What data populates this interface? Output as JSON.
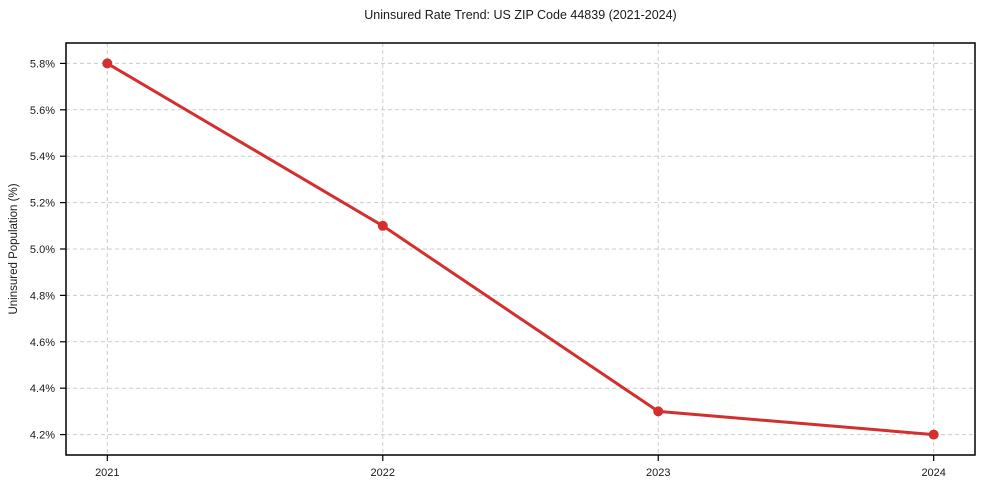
{
  "chart_data": {
    "type": "line",
    "title": "Uninsured Rate Trend: US ZIP Code 44839 (2021-2024)",
    "xlabel": "",
    "ylabel": "Uninsured Population (%)",
    "x": [
      2021,
      2022,
      2023,
      2024
    ],
    "x_tick_labels": [
      "2021",
      "2022",
      "2023",
      "2024"
    ],
    "series": [
      {
        "name": "uninsured-rate",
        "values": [
          5.8,
          5.1,
          4.3,
          4.2
        ],
        "color": "#d32f2f",
        "marker": "circle"
      }
    ],
    "y_ticks": [
      4.2,
      4.4,
      4.6,
      4.8,
      5.0,
      5.2,
      5.4,
      5.6,
      5.8
    ],
    "y_tick_labels": [
      "4.2%",
      "4.4%",
      "4.6%",
      "4.8%",
      "5.0%",
      "5.2%",
      "5.4%",
      "5.6%",
      "5.8%"
    ],
    "xlim": [
      2020.85,
      2024.15
    ],
    "ylim": [
      4.112,
      5.888
    ],
    "grid": true,
    "grid_style": "dashed",
    "legend_position": "none",
    "grid_color": "#cccccc",
    "axis_color": "#000000",
    "text_color": "#1a1a1a",
    "background": "#ffffff"
  }
}
